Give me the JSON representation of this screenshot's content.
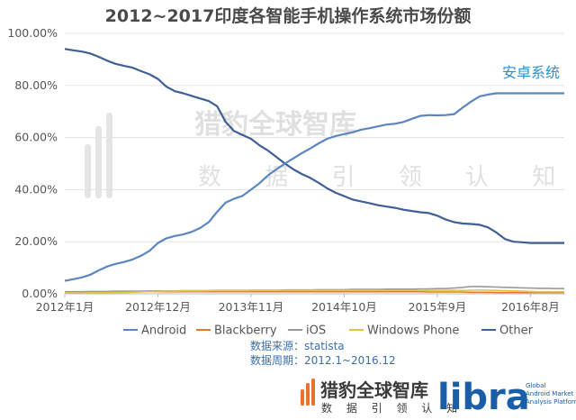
{
  "chart_data": {
    "type": "line",
    "title": "2012~2017印度各智能手机操作系统市场份额",
    "x": [
      "2012-01",
      "2012-02",
      "2012-03",
      "2012-04",
      "2012-05",
      "2012-06",
      "2012-07",
      "2012-08",
      "2012-09",
      "2012-10",
      "2012-11",
      "2012-12",
      "2013-01",
      "2013-02",
      "2013-03",
      "2013-04",
      "2013-05",
      "2013-06",
      "2013-07",
      "2013-08",
      "2013-09",
      "2013-10",
      "2013-11",
      "2013-12",
      "2014-01",
      "2014-02",
      "2014-03",
      "2014-04",
      "2014-05",
      "2014-06",
      "2014-07",
      "2014-08",
      "2014-09",
      "2014-10",
      "2014-11",
      "2014-12",
      "2015-01",
      "2015-02",
      "2015-03",
      "2015-04",
      "2015-05",
      "2015-06",
      "2015-07",
      "2015-08",
      "2015-09",
      "2015-10",
      "2015-11",
      "2015-12",
      "2016-01",
      "2016-02",
      "2016-03",
      "2016-04",
      "2016-05",
      "2016-06",
      "2016-07",
      "2016-08",
      "2016-09",
      "2016-10",
      "2016-11",
      "2016-12"
    ],
    "x_tick_labels": [
      "2012年1月",
      "2012年12月",
      "2013年11月",
      "2014年10月",
      "2015年9月",
      "2016年8月"
    ],
    "x_tick_index": [
      0,
      11,
      22,
      33,
      44,
      55
    ],
    "ylim": [
      0,
      100
    ],
    "y_tick_labels": [
      "0.00%",
      "20.00%",
      "40.00%",
      "60.00%",
      "80.00%",
      "100.00%"
    ],
    "y_ticks": [
      0,
      20,
      40,
      60,
      80,
      100
    ],
    "grid": true,
    "legend_position": "bottom",
    "series": [
      {
        "name": "Android",
        "color": "#5b86bf",
        "values": [
          5,
          5.6,
          6.3,
          7.3,
          9,
          10.5,
          11.5,
          12.2,
          13.2,
          14.6,
          16.5,
          19.5,
          21.3,
          22.2,
          22.8,
          23.8,
          25.3,
          27.5,
          31.5,
          35,
          36.5,
          37.6,
          40,
          42.5,
          45.5,
          47.8,
          50,
          52,
          54,
          55.8,
          57.8,
          59.5,
          60.6,
          61.3,
          62,
          63,
          63.6,
          64.3,
          65,
          65.3,
          66,
          67.2,
          68.3,
          68.6,
          68.5,
          68.6,
          69,
          71.5,
          73.8,
          75.8,
          76.5,
          77,
          77,
          77,
          77,
          77,
          77,
          77,
          77,
          77
        ]
      },
      {
        "name": "Blackberry",
        "color": "#e07b39",
        "values": [
          0.6,
          0.6,
          0.6,
          0.7,
          0.7,
          0.7,
          0.7,
          0.8,
          0.8,
          0.8,
          0.8,
          0.8,
          0.8,
          0.8,
          0.8,
          0.8,
          0.8,
          0.8,
          0.8,
          0.8,
          0.8,
          0.8,
          0.8,
          0.8,
          0.8,
          0.8,
          0.8,
          0.8,
          0.8,
          0.8,
          0.8,
          0.8,
          0.8,
          0.8,
          0.8,
          0.8,
          0.8,
          0.8,
          0.8,
          0.8,
          0.8,
          0.8,
          0.8,
          0.7,
          0.7,
          0.7,
          0.7,
          0.7,
          0.6,
          0.6,
          0.6,
          0.5,
          0.5,
          0.5,
          0.5,
          0.5,
          0.5,
          0.5,
          0.5,
          0.5
        ]
      },
      {
        "name": "iOS",
        "color": "#9a9a9a",
        "values": [
          0.8,
          0.8,
          0.8,
          0.9,
          0.9,
          0.9,
          1,
          1,
          1,
          1,
          1.1,
          1.1,
          1.1,
          1.1,
          1.2,
          1.2,
          1.2,
          1.2,
          1.3,
          1.3,
          1.3,
          1.3,
          1.4,
          1.4,
          1.4,
          1.4,
          1.5,
          1.5,
          1.5,
          1.5,
          1.6,
          1.6,
          1.6,
          1.6,
          1.7,
          1.7,
          1.7,
          1.7,
          1.8,
          1.8,
          1.8,
          1.8,
          1.9,
          1.9,
          2,
          2,
          2.2,
          2.5,
          2.8,
          2.8,
          2.7,
          2.6,
          2.5,
          2.4,
          2.3,
          2.2,
          2.1,
          2.1,
          2,
          2
        ]
      },
      {
        "name": "Windows Phone",
        "color": "#e5c24a",
        "values": [
          0.3,
          0.3,
          0.3,
          0.4,
          0.4,
          0.4,
          0.5,
          0.5,
          0.6,
          0.7,
          0.8,
          0.9,
          1,
          1,
          1.1,
          1.1,
          1.1,
          1.2,
          1.2,
          1.2,
          1.2,
          1.2,
          1.3,
          1.3,
          1.3,
          1.3,
          1.3,
          1.3,
          1.3,
          1.3,
          1.3,
          1.3,
          1.3,
          1.3,
          1.3,
          1.3,
          1.3,
          1.3,
          1.3,
          1.3,
          1.3,
          1.3,
          1.3,
          1.3,
          1.3,
          1.3,
          1.3,
          1.3,
          1.4,
          1.5,
          1.4,
          1.3,
          1.2,
          1.1,
          1,
          0.9,
          0.8,
          0.8,
          0.8,
          0.8
        ]
      },
      {
        "name": "Other",
        "color": "#3f5f95",
        "values": [
          94,
          93.5,
          93,
          92.3,
          91,
          89.5,
          88.3,
          87.5,
          86.8,
          85.5,
          84.3,
          82.5,
          79.5,
          77.8,
          77,
          76,
          75,
          74,
          72,
          66,
          62.5,
          61,
          59.5,
          57,
          55,
          52.5,
          50,
          47.8,
          46,
          44.5,
          42.6,
          40.5,
          38.8,
          37.5,
          36.2,
          35.5,
          34.8,
          34,
          33.5,
          33,
          32.3,
          31.8,
          31.3,
          31,
          30,
          28.5,
          27.5,
          27,
          26.8,
          26.5,
          25.5,
          23.5,
          21,
          20,
          19.8,
          19.5,
          19.5,
          19.5,
          19.5,
          19.5
        ]
      }
    ],
    "annotation": "安卓系统"
  },
  "watermark": {
    "text": "猎豹全球智库",
    "subtext": "数 据 引 领 认 知"
  },
  "source_lines": [
    "数据来源：statista",
    "数据周期：2012.1~2016.12"
  ],
  "brand": {
    "cn": "猎豹全球智库",
    "cn_sub": "数 据 引 领 认 知",
    "libra": "libra",
    "libra_small_1": "Global",
    "libra_small_2": "Android Market",
    "libra_small_3": "Analysis Platform"
  }
}
